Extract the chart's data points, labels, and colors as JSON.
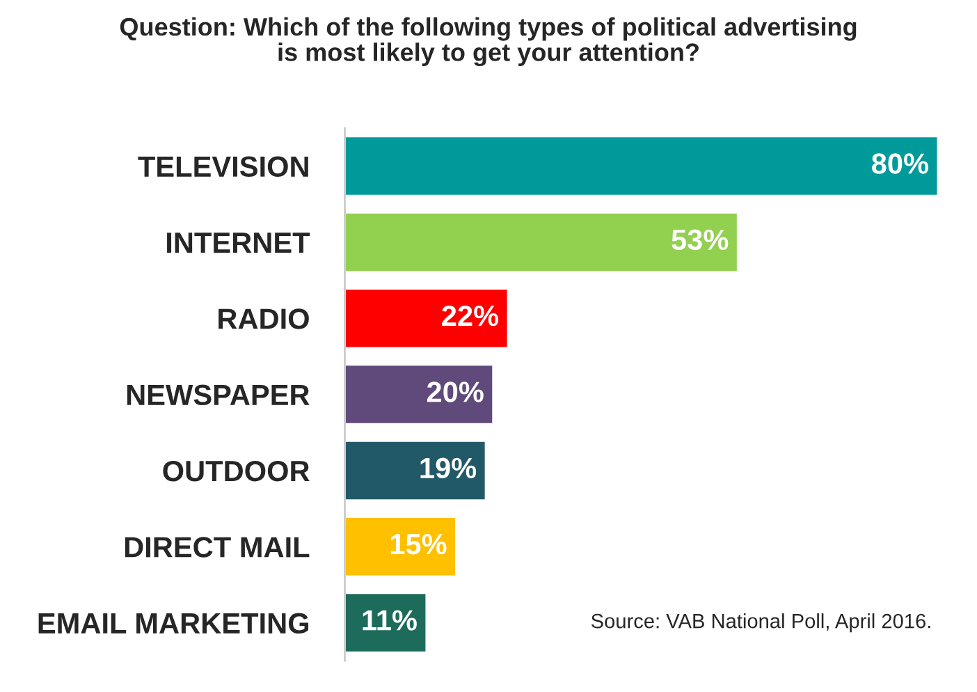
{
  "chart_data": {
    "type": "bar",
    "orientation": "horizontal",
    "title": "Question: Which of the following types of political advertising\nis most likely to get your attention?",
    "categories": [
      "TELEVISION",
      "INTERNET",
      "RADIO",
      "NEWSPAPER",
      "OUTDOOR",
      "DIRECT MAIL",
      "EMAIL MARKETING"
    ],
    "values": [
      80,
      53,
      22,
      20,
      19,
      15,
      11
    ],
    "colors": [
      "#009a9a",
      "#92d050",
      "#ff0000",
      "#604a7b",
      "#215968",
      "#ffc000",
      "#1d6b5a"
    ],
    "value_labels": [
      "80%",
      "53%",
      "22%",
      "20%",
      "19%",
      "15%",
      "11%"
    ],
    "annotations": [
      "Source: VAB National Poll, April 2016."
    ]
  }
}
